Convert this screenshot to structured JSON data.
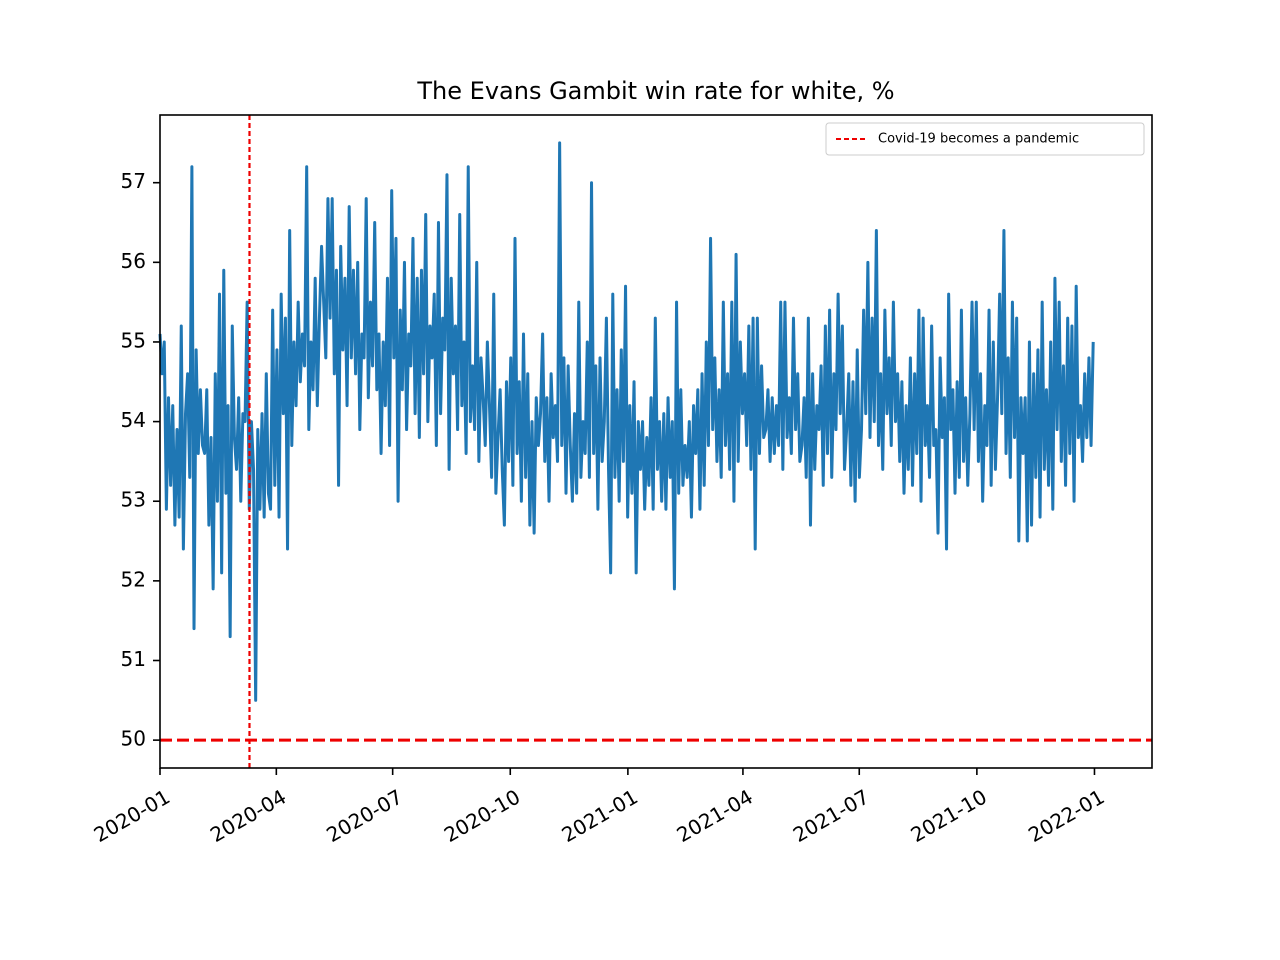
{
  "chart_data": {
    "type": "line",
    "title": "The Evans Gambit win rate for white, %",
    "xlabel": "",
    "ylabel": "",
    "x_range": [
      "2020-01-01",
      "2022-02-15"
    ],
    "ylim": [
      49.65,
      57.85
    ],
    "x_ticks": [
      "2020-01",
      "2020-04",
      "2020-07",
      "2020-10",
      "2021-01",
      "2021-04",
      "2021-07",
      "2021-10",
      "2022-01"
    ],
    "y_ticks": [
      "50",
      "51",
      "52",
      "53",
      "54",
      "55",
      "56",
      "57"
    ],
    "grid": false,
    "legend": {
      "placement": "top-right",
      "entries": [
        "Covid-19 becomes a pandemic"
      ]
    },
    "reference_lines": [
      {
        "orientation": "vertical",
        "x": "2020-03-11",
        "color": "#ee0000",
        "style": "dashed",
        "label": "Covid-19 becomes a pandemic"
      },
      {
        "orientation": "horizontal",
        "y": 50,
        "color": "#ee0000",
        "style": "dashed"
      }
    ],
    "series": [
      {
        "color": "#1f77b4",
        "start_date": "2020-01-01",
        "end_date": "2021-12-31",
        "values": [
          55.1,
          54.6,
          55.0,
          52.9,
          54.3,
          53.2,
          54.2,
          52.7,
          53.9,
          52.8,
          55.2,
          52.4,
          54.1,
          54.6,
          53.3,
          57.2,
          51.4,
          54.9,
          53.6,
          54.4,
          53.7,
          53.6,
          54.4,
          52.7,
          53.8,
          51.9,
          54.6,
          53.0,
          55.6,
          52.1,
          55.9,
          53.1,
          54.2,
          51.3,
          55.2,
          53.8,
          53.4,
          54.3,
          53.0,
          54.1,
          54.0,
          55.5,
          52.9,
          54.0,
          53.4,
          50.5,
          53.9,
          52.9,
          54.1,
          52.8,
          54.6,
          53.1,
          52.9,
          55.4,
          53.2,
          54.9,
          52.8,
          55.6,
          54.1,
          55.3,
          52.4,
          56.4,
          53.7,
          55.0,
          54.2,
          55.5,
          54.5,
          55.1,
          54.7,
          57.2,
          53.9,
          55.0,
          54.4,
          55.8,
          54.2,
          55.3,
          56.2,
          55.5,
          54.8,
          56.8,
          55.3,
          56.8,
          54.6,
          55.9,
          53.2,
          56.2,
          54.9,
          55.8,
          54.2,
          56.7,
          54.8,
          55.9,
          54.6,
          56.0,
          53.9,
          55.1,
          54.8,
          56.8,
          54.3,
          55.5,
          54.7,
          56.5,
          54.4,
          55.1,
          53.6,
          55.0,
          54.2,
          55.8,
          53.7,
          56.9,
          54.8,
          56.3,
          53.0,
          55.4,
          54.4,
          56.0,
          53.9,
          55.1,
          54.7,
          56.3,
          54.1,
          55.8,
          53.8,
          55.9,
          54.6,
          56.6,
          54.0,
          55.2,
          54.8,
          55.6,
          53.7,
          56.5,
          54.1,
          55.3,
          54.9,
          57.1,
          53.4,
          55.8,
          54.6,
          55.2,
          53.9,
          56.6,
          54.2,
          55.0,
          53.6,
          57.2,
          54.0,
          54.7,
          53.9,
          56.0,
          53.5,
          54.8,
          54.3,
          53.7,
          55.0,
          54.2,
          53.3,
          55.6,
          53.1,
          53.8,
          54.4,
          53.4,
          52.7,
          54.5,
          53.5,
          54.8,
          53.2,
          56.3,
          53.6,
          54.5,
          53.0,
          55.1,
          53.3,
          54.6,
          52.7,
          54.0,
          52.6,
          54.3,
          53.7,
          54.1,
          55.1,
          53.5,
          54.3,
          53.0,
          54.6,
          53.8,
          54.2,
          53.5,
          57.5,
          53.7,
          54.8,
          53.1,
          54.7,
          53.7,
          53.0,
          54.1,
          53.1,
          55.5,
          53.3,
          54.0,
          53.6,
          55.0,
          53.3,
          57.0,
          53.6,
          54.7,
          52.9,
          54.8,
          53.5,
          54.0,
          55.3,
          53.4,
          52.1,
          55.6,
          53.3,
          54.4,
          53.0,
          54.9,
          53.5,
          55.7,
          52.8,
          54.2,
          53.1,
          54.5,
          52.1,
          54.0,
          53.4,
          54.0,
          52.9,
          53.8,
          53.2,
          54.3,
          52.9,
          55.3,
          53.4,
          54.0,
          53.0,
          54.1,
          52.9,
          54.3,
          53.3,
          54.0,
          51.9,
          55.5,
          53.1,
          54.4,
          53.2,
          53.7,
          53.3,
          54.0,
          52.8,
          54.2,
          53.6,
          54.4,
          52.9,
          54.6,
          53.2,
          55.0,
          53.7,
          56.3,
          53.9,
          54.8,
          53.5,
          54.4,
          53.3,
          55.5,
          53.7,
          54.6,
          53.4,
          55.5,
          53.0,
          56.1,
          53.5,
          55.0,
          54.1,
          54.6,
          53.7,
          55.2,
          53.4,
          55.3,
          52.4,
          55.3,
          53.6,
          54.7,
          53.8,
          53.9,
          54.4,
          53.5,
          54.3,
          53.6,
          54.2,
          53.7,
          55.5,
          53.4,
          55.5,
          53.8,
          54.3,
          53.6,
          55.3,
          53.9,
          54.6,
          53.5,
          53.7,
          54.3,
          53.3,
          55.3,
          52.7,
          54.6,
          53.4,
          54.2,
          53.9,
          54.7,
          53.2,
          55.2,
          53.6,
          55.4,
          53.3,
          54.6,
          53.9,
          55.6,
          54.1,
          55.2,
          53.4,
          53.9,
          54.6,
          53.2,
          54.5,
          53.0,
          54.9,
          53.3,
          53.9,
          55.4,
          54.1,
          56.0,
          53.8,
          55.3,
          54.0,
          56.4,
          53.7,
          54.6,
          53.4,
          55.4,
          54.1,
          54.8,
          53.7,
          55.5,
          54.0,
          54.6,
          53.5,
          54.5,
          53.1,
          54.2,
          53.4,
          54.8,
          53.2,
          54.6,
          53.6,
          55.4,
          53.0,
          55.3,
          53.7,
          54.2,
          53.3,
          55.2,
          53.7,
          53.9,
          52.6,
          54.8,
          53.8,
          54.3,
          52.4,
          55.6,
          53.9,
          54.4,
          53.1,
          54.5,
          53.3,
          55.4,
          53.5,
          54.3,
          53.2,
          54.1,
          55.5,
          53.9,
          55.5,
          53.5,
          54.6,
          53.0,
          54.2,
          53.7,
          55.4,
          53.2,
          55.0,
          53.4,
          54.3,
          55.6,
          54.1,
          56.4,
          53.6,
          54.8,
          53.3,
          55.5,
          53.8,
          55.3,
          52.5,
          54.3,
          53.6,
          54.3,
          52.5,
          55.0,
          52.7,
          54.6,
          53.3,
          54.9,
          52.8,
          55.5,
          53.4,
          54.4,
          53.2,
          55.0,
          52.9,
          55.8,
          53.9,
          55.5,
          53.5,
          54.7,
          53.2,
          55.3,
          53.6,
          55.2,
          53.0,
          55.7,
          53.8,
          54.2,
          53.5,
          54.6,
          53.8,
          54.8,
          53.7,
          55.0
        ]
      }
    ]
  }
}
